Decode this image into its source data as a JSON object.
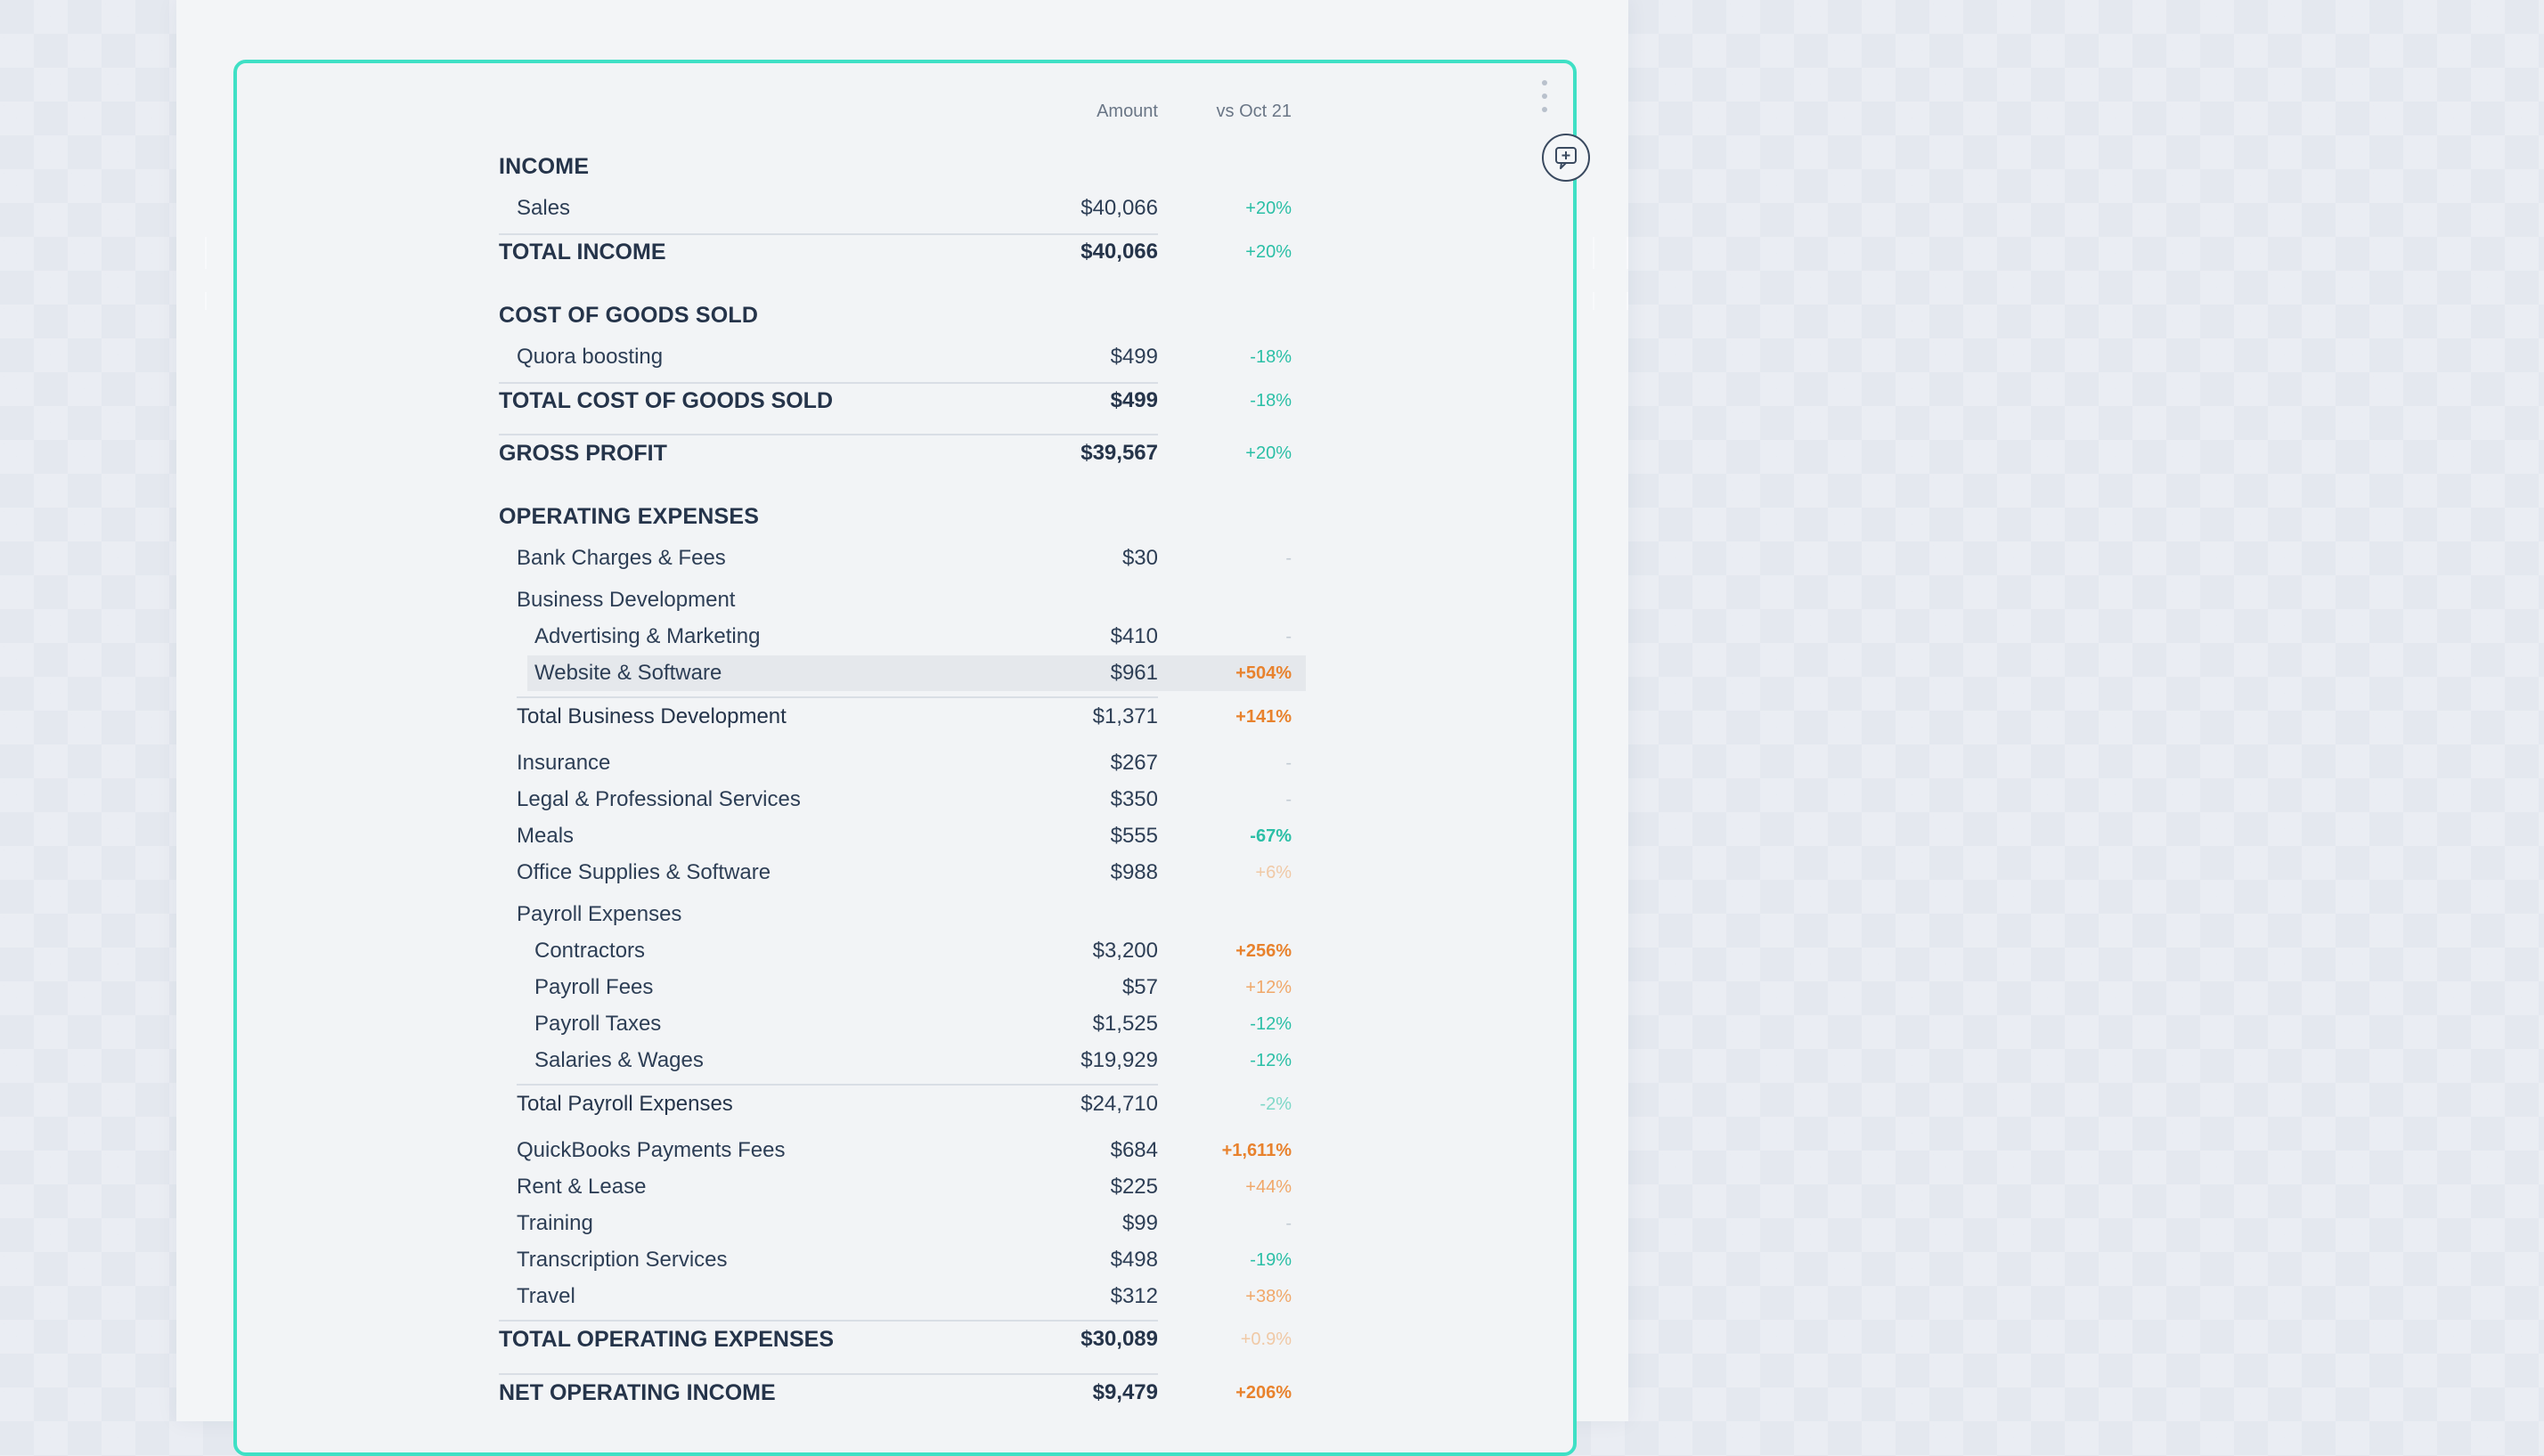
{
  "header": {
    "amount": "Amount",
    "compare": "vs Oct 21"
  },
  "colors": {
    "accent": "#3fe0c5",
    "positive": "#2bbfa6",
    "negative": "#e8822d",
    "neutral": "#c3cbd4"
  },
  "icons": {
    "menu": "vertical-dots-icon",
    "comment": "comment-plus-icon"
  },
  "rows": [
    {
      "label": "INCOME",
      "amount": "",
      "change": ""
    },
    {
      "label": "Sales",
      "amount": "$40,066",
      "change": "+20%"
    },
    {
      "label": "TOTAL INCOME",
      "amount": "$40,066",
      "change": "+20%"
    },
    {
      "label": "COST OF GOODS SOLD",
      "amount": "",
      "change": ""
    },
    {
      "label": "Quora boosting",
      "amount": "$499",
      "change": "-18%"
    },
    {
      "label": "TOTAL COST OF GOODS SOLD",
      "amount": "$499",
      "change": "-18%"
    },
    {
      "label": "GROSS PROFIT",
      "amount": "$39,567",
      "change": "+20%"
    },
    {
      "label": "OPERATING EXPENSES",
      "amount": "",
      "change": ""
    },
    {
      "label": "Bank Charges & Fees",
      "amount": "$30",
      "change": "-"
    },
    {
      "label": "Business Development",
      "amount": "",
      "change": ""
    },
    {
      "label": "Advertising & Marketing",
      "amount": "$410",
      "change": "-"
    },
    {
      "label": "Website & Software",
      "amount": "$961",
      "change": "+504%"
    },
    {
      "label": "Total Business Development",
      "amount": "$1,371",
      "change": "+141%"
    },
    {
      "label": "Insurance",
      "amount": "$267",
      "change": "-"
    },
    {
      "label": "Legal & Professional Services",
      "amount": "$350",
      "change": "-"
    },
    {
      "label": "Meals",
      "amount": "$555",
      "change": "-67%"
    },
    {
      "label": "Office Supplies & Software",
      "amount": "$988",
      "change": "+6%"
    },
    {
      "label": "Payroll Expenses",
      "amount": "",
      "change": ""
    },
    {
      "label": "Contractors",
      "amount": "$3,200",
      "change": "+256%"
    },
    {
      "label": "Payroll Fees",
      "amount": "$57",
      "change": "+12%"
    },
    {
      "label": "Payroll Taxes",
      "amount": "$1,525",
      "change": "-12%"
    },
    {
      "label": "Salaries & Wages",
      "amount": "$19,929",
      "change": "-12%"
    },
    {
      "label": "Total Payroll Expenses",
      "amount": "$24,710",
      "change": "-2%"
    },
    {
      "label": "QuickBooks Payments Fees",
      "amount": "$684",
      "change": "+1,611%"
    },
    {
      "label": "Rent & Lease",
      "amount": "$225",
      "change": "+44%"
    },
    {
      "label": "Training",
      "amount": "$99",
      "change": "-"
    },
    {
      "label": "Transcription Services",
      "amount": "$498",
      "change": "-19%"
    },
    {
      "label": "Travel",
      "amount": "$312",
      "change": "+38%"
    },
    {
      "label": "TOTAL OPERATING EXPENSES",
      "amount": "$30,089",
      "change": "+0.9%"
    },
    {
      "label": "NET OPERATING INCOME",
      "amount": "$9,479",
      "change": "+206%"
    }
  ]
}
